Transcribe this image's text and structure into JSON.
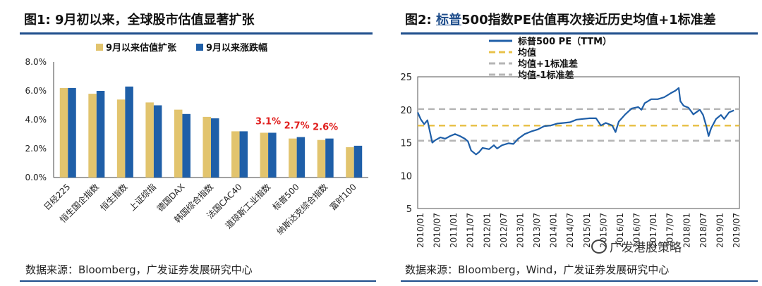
{
  "figures": [
    {
      "title_prefix": "图1:",
      "title_text": "9月初以来，全球股市估值显著扩张",
      "source": "数据来源：Bloomberg，广发证券发展研究中心"
    },
    {
      "title_prefix": "图2:",
      "title_link": "标普",
      "title_text": "500指数PE估值再次接近历史均值+1标准差",
      "source": "数据来源：Bloomberg，Wind，广发证券发展研究中心",
      "watermark": "广发港股策略"
    }
  ],
  "colors": {
    "tan": "#e2c46e",
    "blue": "#1f5fa8",
    "mean": "#e8c24a",
    "std": "#b5b5b5",
    "accent_red": "#e0201f",
    "rule": "#1f4e8c"
  },
  "chart_data": [
    {
      "type": "bar",
      "categories": [
        "日经225",
        "恒生国企指数",
        "恒生指数",
        "上证综指",
        "德国DAX",
        "韩国综合指数",
        "法国CAC40",
        "道琼斯工业指数",
        "标普500",
        "纳斯达克综合指数",
        "富时100"
      ],
      "series": [
        {
          "name": "9月以来估值扩张",
          "color": "#e2c46e",
          "values": [
            6.2,
            5.8,
            5.4,
            5.2,
            4.7,
            4.2,
            3.2,
            3.1,
            2.7,
            2.6,
            2.1
          ]
        },
        {
          "name": "9月以来涨跌幅",
          "color": "#1f5fa8",
          "values": [
            6.2,
            6.0,
            6.3,
            5.0,
            4.4,
            4.1,
            3.2,
            3.1,
            2.8,
            2.7,
            2.2
          ]
        }
      ],
      "annotations": [
        {
          "category": "道琼斯工业指数",
          "text": "3.1%"
        },
        {
          "category": "标普500",
          "text": "2.7%"
        },
        {
          "category": "纳斯达克综合指数",
          "text": "2.6%"
        }
      ],
      "ylim": [
        0,
        8
      ],
      "yticks": [
        "0.0%",
        "2.0%",
        "4.0%",
        "6.0%",
        "8.0%"
      ],
      "legend_position": "top"
    },
    {
      "type": "line",
      "ylim": [
        5,
        25
      ],
      "yticks": [
        "5",
        "10",
        "15",
        "20",
        "25"
      ],
      "xticks": [
        "2010/01",
        "2010/07",
        "2011/01",
        "2011/07",
        "2012/01",
        "2012/07",
        "2013/01",
        "2013/07",
        "2014/01",
        "2014/07",
        "2015/01",
        "2015/07",
        "2016/01",
        "2016/07",
        "2017/01",
        "2017/07",
        "2018/01",
        "2018/07",
        "2019/01",
        "2019/07"
      ],
      "legend": [
        "标普500 PE（TTM）",
        "均值",
        "均值+1标准差",
        "均值-1标准差"
      ],
      "mean": 17.6,
      "plus1std": 20.1,
      "minus1std": 15.3,
      "series": [
        {
          "name": "标普500 PE（TTM）",
          "color": "#1f5fa8",
          "x": [
            2010.0,
            2010.1,
            2010.2,
            2010.3,
            2010.45,
            2010.55,
            2010.7,
            2010.85,
            2011.0,
            2011.15,
            2011.3,
            2011.45,
            2011.55,
            2011.65,
            2011.8,
            2011.9,
            2012.0,
            2012.2,
            2012.35,
            2012.45,
            2012.6,
            2012.8,
            2012.95,
            2013.1,
            2013.3,
            2013.5,
            2013.7,
            2013.9,
            2014.1,
            2014.3,
            2014.5,
            2014.7,
            2014.9,
            2015.1,
            2015.3,
            2015.5,
            2015.65,
            2015.8,
            2016.0,
            2016.1,
            2016.2,
            2016.4,
            2016.6,
            2016.8,
            2016.9,
            2017.0,
            2017.2,
            2017.4,
            2017.6,
            2017.8,
            2017.95,
            2018.05,
            2018.1,
            2018.2,
            2018.35,
            2018.5,
            2018.7,
            2018.8,
            2018.9,
            2018.97,
            2019.05,
            2019.2,
            2019.35,
            2019.45,
            2019.6,
            2019.75
          ],
          "y": [
            19.6,
            18.5,
            17.8,
            18.4,
            15.0,
            15.4,
            15.8,
            15.6,
            16.0,
            16.3,
            16.0,
            15.6,
            15.2,
            13.8,
            13.2,
            13.6,
            14.2,
            14.0,
            14.6,
            14.1,
            14.6,
            14.9,
            14.8,
            15.6,
            16.3,
            16.7,
            17.0,
            17.5,
            17.6,
            17.9,
            18.0,
            18.1,
            18.5,
            18.6,
            18.7,
            18.7,
            17.6,
            18.0,
            17.6,
            16.6,
            18.2,
            19.3,
            20.2,
            20.4,
            20.0,
            21.0,
            21.6,
            21.6,
            21.9,
            22.5,
            22.9,
            23.3,
            21.3,
            20.6,
            20.3,
            19.3,
            20.0,
            19.2,
            17.5,
            16.0,
            17.2,
            18.6,
            19.2,
            18.6,
            19.6,
            19.9
          ]
        }
      ]
    }
  ]
}
